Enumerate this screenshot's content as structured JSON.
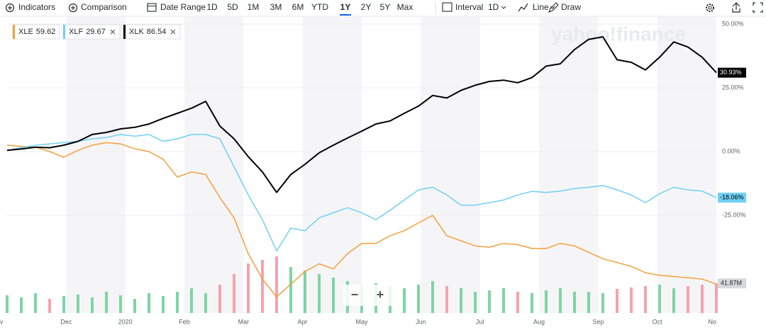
{
  "toolbar": {
    "indicators": "Indicators",
    "comparison": "Comparison",
    "date_range": "Date Range",
    "ranges": [
      "1D",
      "5D",
      "1M",
      "3M",
      "6M",
      "YTD",
      "1Y",
      "2Y",
      "5Y",
      "Max"
    ],
    "active_range": 6,
    "interval": "Interval",
    "interval_value": "1D",
    "line": "Line",
    "draw": "Draw"
  },
  "watermark": "yahoo!finance",
  "zoom_controls": [
    "−",
    "+"
  ],
  "chart_data": {
    "type": "line",
    "x_labels": [
      "v",
      "Dec",
      "2020",
      "Feb",
      "Mar",
      "Apr",
      "May",
      "Jun",
      "Jul",
      "Aug",
      "Sep",
      "Oct",
      "No"
    ],
    "ylim": [
      -63.3,
      51.1
    ],
    "yticks": [
      {
        "value": 50,
        "label": "50.00%"
      },
      {
        "value": 25,
        "label": "25.00%"
      },
      {
        "value": 0,
        "label": "0.00%"
      },
      {
        "value": -25,
        "label": "-25.00%"
      }
    ],
    "grid": true,
    "series": [
      {
        "name": "XLE",
        "price": 59.62,
        "color": "#f2a03c",
        "removable": false,
        "values": [
          2.5,
          2,
          1.7,
          0,
          -2.2,
          0.5,
          2.5,
          3.5,
          3,
          1.1,
          0,
          -3,
          -10,
          -8,
          -9,
          -18,
          -26,
          -40,
          -50,
          -57,
          -52,
          -47,
          -44,
          -46,
          -40,
          -36,
          -36,
          -33,
          -31,
          -28,
          -25,
          -33,
          -35,
          -37,
          -37.5,
          -36,
          -36.5,
          -38,
          -38,
          -36,
          -37,
          -39.5,
          -42,
          -43.5,
          -45,
          -47.5,
          -48.5,
          -49,
          -49.5,
          -50,
          -52
        ]
      },
      {
        "name": "XLF",
        "price": 29.67,
        "color": "#6fd0f5",
        "removable": true,
        "end_label": "-18.06%",
        "badge_text": "#000000",
        "values": [
          0.5,
          1.5,
          2.5,
          3,
          3.5,
          4,
          5,
          5.5,
          6.7,
          6,
          6.7,
          4,
          5,
          6.7,
          6.7,
          5,
          -6,
          -17,
          -26.7,
          -39,
          -30,
          -31,
          -26,
          -24,
          -22,
          -24,
          -26.7,
          -23,
          -19,
          -15,
          -14,
          -17,
          -21,
          -21,
          -20,
          -19,
          -17,
          -15.6,
          -16,
          -15.5,
          -14.5,
          -14,
          -13.3,
          -15,
          -17,
          -20,
          -16.5,
          -14,
          -15,
          -15.5,
          -18.06
        ]
      },
      {
        "name": "XLK",
        "price": 86.54,
        "color": "#000000",
        "removable": true,
        "end_label": "30.93%",
        "badge_text": "#ffffff",
        "values": [
          0.5,
          1,
          1.7,
          1.5,
          2.5,
          4,
          6.7,
          7.5,
          8.9,
          9.5,
          10.8,
          13,
          15,
          17,
          19.7,
          10,
          5,
          -2,
          -8,
          -16,
          -9,
          -5,
          -0.5,
          2.5,
          5.3,
          8,
          10.8,
          12,
          15,
          17.8,
          22,
          21,
          24,
          26,
          27.5,
          28,
          27,
          29,
          33.5,
          34.4,
          40,
          44,
          45,
          36,
          35,
          32,
          37,
          43,
          41,
          37,
          30.93
        ]
      }
    ],
    "volume": {
      "values": [
        25,
        22,
        28,
        20,
        24,
        26,
        22,
        30,
        25,
        20,
        28,
        24,
        30,
        35,
        28,
        40,
        55,
        70,
        75,
        80,
        65,
        60,
        55,
        50,
        45,
        40,
        42,
        38,
        35,
        40,
        45,
        38,
        35,
        30,
        32,
        35,
        30,
        28,
        32,
        35,
        30,
        30,
        28,
        34,
        36,
        38,
        40,
        35,
        38,
        40,
        41.87
      ],
      "end_label": "41.87M",
      "color_up": "#7fd4a4",
      "color_down": "#f4a3ad"
    }
  }
}
